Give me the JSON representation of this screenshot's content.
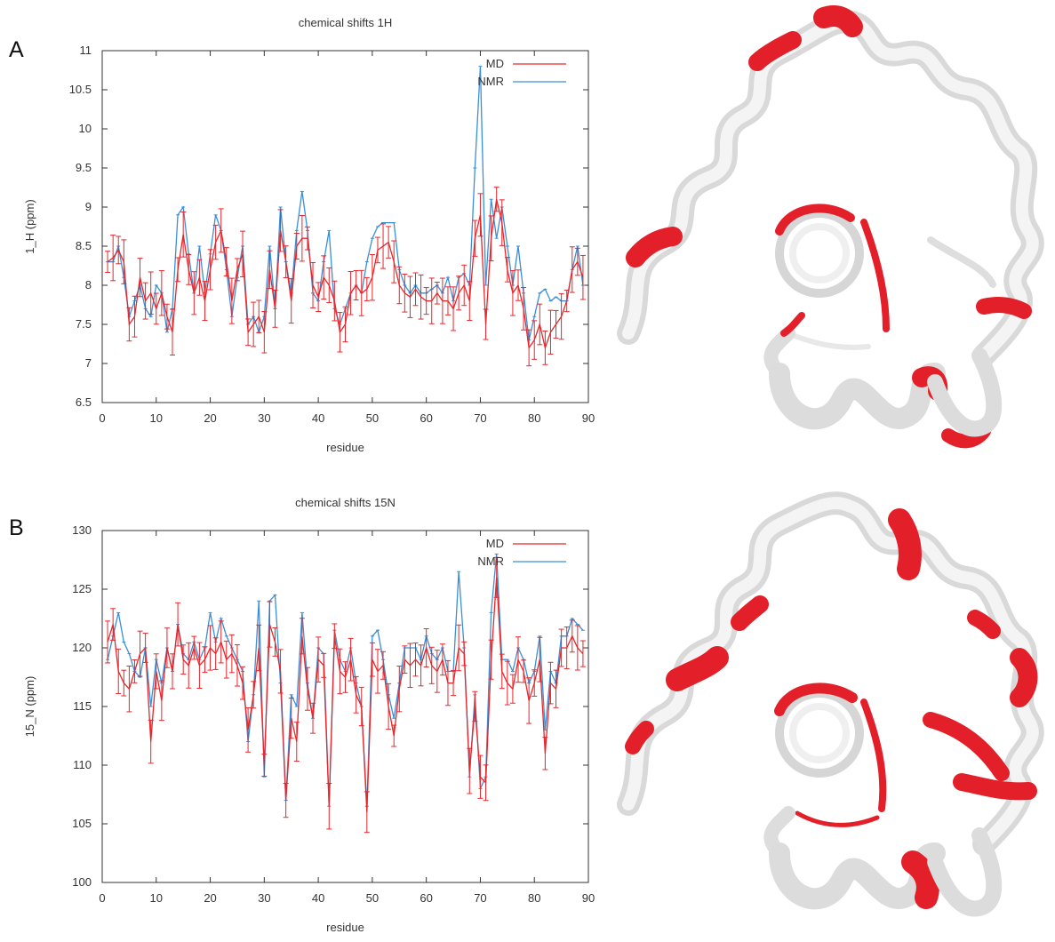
{
  "panels": [
    {
      "letter": "A"
    },
    {
      "letter": "B"
    }
  ],
  "colors": {
    "md": "#e8262b",
    "nmr": "#3a8fd8",
    "ribbon_base": "#e9e9e9",
    "ribbon_highlight": "#e3202a"
  },
  "chart_data": [
    {
      "type": "line",
      "title": "chemical shifts 1H",
      "xlabel": "residue",
      "ylabel": "1_H (ppm)",
      "xlim": [
        0,
        90
      ],
      "ylim": [
        6.5,
        11
      ],
      "xticks": [
        0,
        10,
        20,
        30,
        40,
        50,
        60,
        70,
        80,
        90
      ],
      "yticks": [
        6.5,
        7,
        7.5,
        8,
        8.5,
        9,
        9.5,
        10,
        10.5,
        11
      ],
      "ytick_labels": [
        "6.5",
        "7",
        "7.5",
        "8",
        "8.5",
        "9",
        "9.5",
        "10",
        "10.5",
        "11"
      ],
      "grid": false,
      "legend": "top-right",
      "x": [
        1,
        2,
        3,
        4,
        5,
        6,
        7,
        8,
        9,
        10,
        11,
        12,
        13,
        14,
        15,
        16,
        17,
        18,
        19,
        20,
        21,
        22,
        23,
        24,
        25,
        26,
        27,
        28,
        29,
        30,
        31,
        32,
        33,
        34,
        35,
        36,
        37,
        38,
        39,
        40,
        41,
        42,
        43,
        44,
        45,
        46,
        47,
        48,
        49,
        50,
        51,
        52,
        53,
        54,
        55,
        56,
        57,
        58,
        59,
        60,
        61,
        62,
        63,
        64,
        65,
        66,
        67,
        68,
        69,
        70,
        71,
        72,
        73,
        74,
        75,
        76,
        77,
        78,
        79,
        80,
        81,
        82,
        83,
        84,
        85,
        86,
        87,
        88,
        89
      ],
      "series": [
        {
          "name": "MD",
          "color": "#e8262b",
          "values": [
            8.3,
            8.35,
            8.45,
            8.3,
            7.5,
            7.6,
            8.1,
            7.8,
            7.9,
            7.7,
            7.9,
            7.6,
            7.4,
            8.2,
            8.65,
            8.2,
            7.9,
            8.1,
            7.8,
            8.2,
            8.55,
            8.7,
            8.3,
            7.8,
            8.2,
            8.4,
            7.4,
            7.5,
            7.6,
            7.4,
            8.2,
            7.7,
            8.7,
            8.3,
            7.8,
            8.5,
            8.6,
            8.6,
            8.0,
            7.85,
            8.1,
            8.0,
            7.8,
            7.4,
            7.5,
            7.9,
            8.0,
            7.9,
            7.95,
            8.1,
            8.45,
            8.5,
            8.55,
            8.3,
            8.0,
            7.9,
            7.85,
            7.95,
            7.85,
            7.8,
            7.8,
            7.9,
            7.8,
            7.8,
            7.7,
            7.9,
            8.0,
            7.8,
            8.6,
            8.9,
            7.5,
            8.6,
            9.1,
            8.8,
            8.2,
            7.9,
            8.0,
            7.7,
            7.2,
            7.3,
            7.5,
            7.2,
            7.4,
            7.5,
            7.6,
            7.8,
            8.2,
            8.3,
            8.1
          ]
        },
        {
          "name": "NMR",
          "color": "#3a8fd8",
          "values": [
            8.3,
            8.3,
            8.5,
            8.1,
            7.6,
            7.8,
            8.0,
            7.7,
            7.6,
            8.0,
            7.9,
            7.4,
            7.7,
            8.9,
            9.0,
            8.4,
            7.9,
            8.5,
            7.9,
            8.4,
            8.9,
            8.7,
            8.2,
            7.6,
            8.1,
            8.5,
            7.5,
            7.6,
            7.4,
            7.6,
            8.5,
            7.7,
            9.0,
            8.3,
            7.9,
            8.7,
            9.2,
            8.7,
            7.9,
            7.8,
            8.3,
            8.7,
            7.7,
            7.5,
            7.7,
            7.9,
            8.0,
            7.9,
            8.3,
            8.6,
            8.75,
            8.8,
            8.8,
            8.8,
            8.2,
            8.0,
            7.9,
            8.0,
            7.9,
            7.9,
            7.95,
            8.0,
            7.9,
            8.1,
            7.8,
            8.1,
            8.15,
            8.0,
            9.5,
            10.8,
            8.0,
            9.1,
            8.6,
            9.0,
            8.5,
            8.0,
            8.5,
            7.9,
            7.3,
            7.6,
            7.9,
            7.95,
            7.8,
            7.85,
            7.8,
            7.8,
            8.2,
            8.5,
            8.0
          ]
        }
      ]
    },
    {
      "type": "line",
      "title": "chemical shifts 15N",
      "xlabel": "residue",
      "ylabel": "15_N (ppm)",
      "xlim": [
        0,
        90
      ],
      "ylim": [
        100,
        130
      ],
      "xticks": [
        0,
        10,
        20,
        30,
        40,
        50,
        60,
        70,
        80,
        90
      ],
      "yticks": [
        100,
        105,
        110,
        115,
        120,
        125,
        130
      ],
      "ytick_labels": [
        "100",
        "105",
        "110",
        "115",
        "120",
        "125",
        "130"
      ],
      "grid": false,
      "legend": "top-right",
      "x": [
        1,
        2,
        3,
        4,
        5,
        6,
        7,
        8,
        9,
        10,
        11,
        12,
        13,
        14,
        15,
        16,
        17,
        18,
        19,
        20,
        21,
        22,
        23,
        24,
        25,
        26,
        27,
        28,
        29,
        30,
        31,
        32,
        33,
        34,
        35,
        36,
        37,
        38,
        39,
        40,
        41,
        42,
        43,
        44,
        45,
        46,
        47,
        48,
        49,
        50,
        51,
        52,
        53,
        54,
        55,
        56,
        57,
        58,
        59,
        60,
        61,
        62,
        63,
        64,
        65,
        66,
        67,
        68,
        69,
        70,
        71,
        72,
        73,
        74,
        75,
        76,
        77,
        78,
        79,
        80,
        81,
        82,
        83,
        84,
        85,
        86,
        87,
        88,
        89
      ],
      "series": [
        {
          "name": "MD",
          "color": "#e8262b",
          "values": [
            120.5,
            122.0,
            118.0,
            117.0,
            116.5,
            118.0,
            119.5,
            120.0,
            112.0,
            118.0,
            115.5,
            120.0,
            118.0,
            122.0,
            119.0,
            118.5,
            120.0,
            118.5,
            119.0,
            120.0,
            119.5,
            120.5,
            119.0,
            119.5,
            118.5,
            117.0,
            113.0,
            116.0,
            120.0,
            110.0,
            122.0,
            120.5,
            118.0,
            107.0,
            114.0,
            112.0,
            121.0,
            116.5,
            114.0,
            119.0,
            118.5,
            106.5,
            121.0,
            118.0,
            117.5,
            119.0,
            116.0,
            115.0,
            106.0,
            119.0,
            118.0,
            118.5,
            115.0,
            112.5,
            116.5,
            119.0,
            118.5,
            119.0,
            118.5,
            120.0,
            118.5,
            118.0,
            119.0,
            117.0,
            117.0,
            120.0,
            119.5,
            109.5,
            115.0,
            109.0,
            108.5,
            119.0,
            126.0,
            118.0,
            117.0,
            116.5,
            119.0,
            118.0,
            115.5,
            117.0,
            119.0,
            111.0,
            117.0,
            116.5,
            120.0,
            120.0,
            121.0,
            120.0,
            119.5
          ]
        },
        {
          "name": "NMR",
          "color": "#3a8fd8",
          "values": [
            119.0,
            121.0,
            123.0,
            120.5,
            119.5,
            118.0,
            117.5,
            120.0,
            115.0,
            119.0,
            117.0,
            120.0,
            118.0,
            122.0,
            119.5,
            119.0,
            120.5,
            119.0,
            120.0,
            123.0,
            120.5,
            122.5,
            121.0,
            120.0,
            119.0,
            118.0,
            112.0,
            116.0,
            124.0,
            109.0,
            124.0,
            124.5,
            117.0,
            107.0,
            116.0,
            115.0,
            123.0,
            117.0,
            114.0,
            120.0,
            119.5,
            106.5,
            121.5,
            119.0,
            118.0,
            120.0,
            117.0,
            115.0,
            106.5,
            121.0,
            121.5,
            119.0,
            116.0,
            114.0,
            117.0,
            120.0,
            120.0,
            120.0,
            119.0,
            121.0,
            119.5,
            119.0,
            120.0,
            118.0,
            118.0,
            126.5,
            120.0,
            109.0,
            116.0,
            108.0,
            109.0,
            123.0,
            128.0,
            119.0,
            119.0,
            118.0,
            120.0,
            119.0,
            117.0,
            118.0,
            121.0,
            113.0,
            118.0,
            117.0,
            121.0,
            121.0,
            122.5,
            122.0,
            121.5
          ]
        }
      ]
    }
  ]
}
